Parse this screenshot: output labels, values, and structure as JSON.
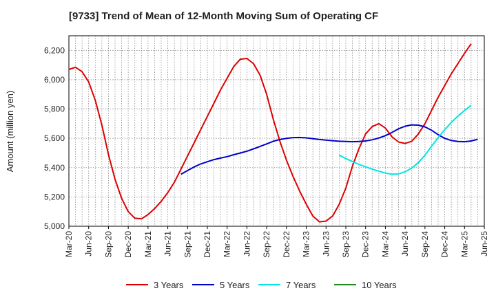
{
  "chart_data": {
    "type": "line",
    "title": "[9733]  Trend of Mean of 12-Month Moving Sum of Operating CF",
    "xlabel": "",
    "ylabel": "Amount (million yen)",
    "ylim": [
      5000,
      6300
    ],
    "yticks": [
      5000,
      5200,
      5400,
      5600,
      5800,
      6000,
      6200
    ],
    "ytick_labels": [
      "5,000",
      "5,200",
      "5,400",
      "5,600",
      "5,800",
      "6,000",
      "6,200"
    ],
    "x_start": "Mar-20",
    "x_end": "Jun-25",
    "x_tick_labels": [
      "Mar-20",
      "Jun-20",
      "Sep-20",
      "Dec-20",
      "Mar-21",
      "Jun-21",
      "Sep-21",
      "Dec-21",
      "Mar-22",
      "Jun-22",
      "Sep-22",
      "Dec-22",
      "Mar-23",
      "Jun-23",
      "Sep-23",
      "Dec-23",
      "Mar-24",
      "Jun-24",
      "Sep-24",
      "Dec-24",
      "Mar-25",
      "Jun-25"
    ],
    "grid": true,
    "legend_position": "bottom",
    "series": [
      {
        "name": "3 Years",
        "color": "#dd0000",
        "start": "Mar-20",
        "values": [
          6070,
          6085,
          6055,
          5985,
          5860,
          5690,
          5490,
          5320,
          5190,
          5100,
          5055,
          5050,
          5080,
          5120,
          5170,
          5230,
          5300,
          5390,
          5480,
          5570,
          5660,
          5750,
          5840,
          5930,
          6010,
          6090,
          6140,
          6145,
          6110,
          6030,
          5900,
          5730,
          5580,
          5450,
          5340,
          5240,
          5150,
          5070,
          5030,
          5035,
          5070,
          5150,
          5260,
          5410,
          5530,
          5630,
          5680,
          5700,
          5670,
          5610,
          5575,
          5565,
          5580,
          5630,
          5700,
          5790,
          5880,
          5960,
          6040,
          6110,
          6180,
          6245
        ]
      },
      {
        "name": "5 Years",
        "color": "#0000cc",
        "start": "Aug-21",
        "values": [
          5355,
          5380,
          5405,
          5425,
          5440,
          5455,
          5465,
          5475,
          5488,
          5500,
          5512,
          5528,
          5545,
          5562,
          5580,
          5592,
          5600,
          5605,
          5606,
          5603,
          5598,
          5592,
          5588,
          5584,
          5580,
          5578,
          5577,
          5578,
          5582,
          5590,
          5602,
          5618,
          5640,
          5665,
          5683,
          5692,
          5690,
          5678,
          5655,
          5625,
          5600,
          5585,
          5578,
          5577,
          5582,
          5593
        ]
      },
      {
        "name": "7 Years",
        "color": "#00e5e5",
        "start": "Aug-23",
        "values": [
          5485,
          5462,
          5442,
          5422,
          5405,
          5390,
          5376,
          5363,
          5355,
          5357,
          5372,
          5397,
          5435,
          5485,
          5545,
          5605,
          5660,
          5708,
          5752,
          5790,
          5825
        ]
      },
      {
        "name": "10 Years",
        "color": "#228b22",
        "start": "Aug-23",
        "values": []
      }
    ]
  }
}
